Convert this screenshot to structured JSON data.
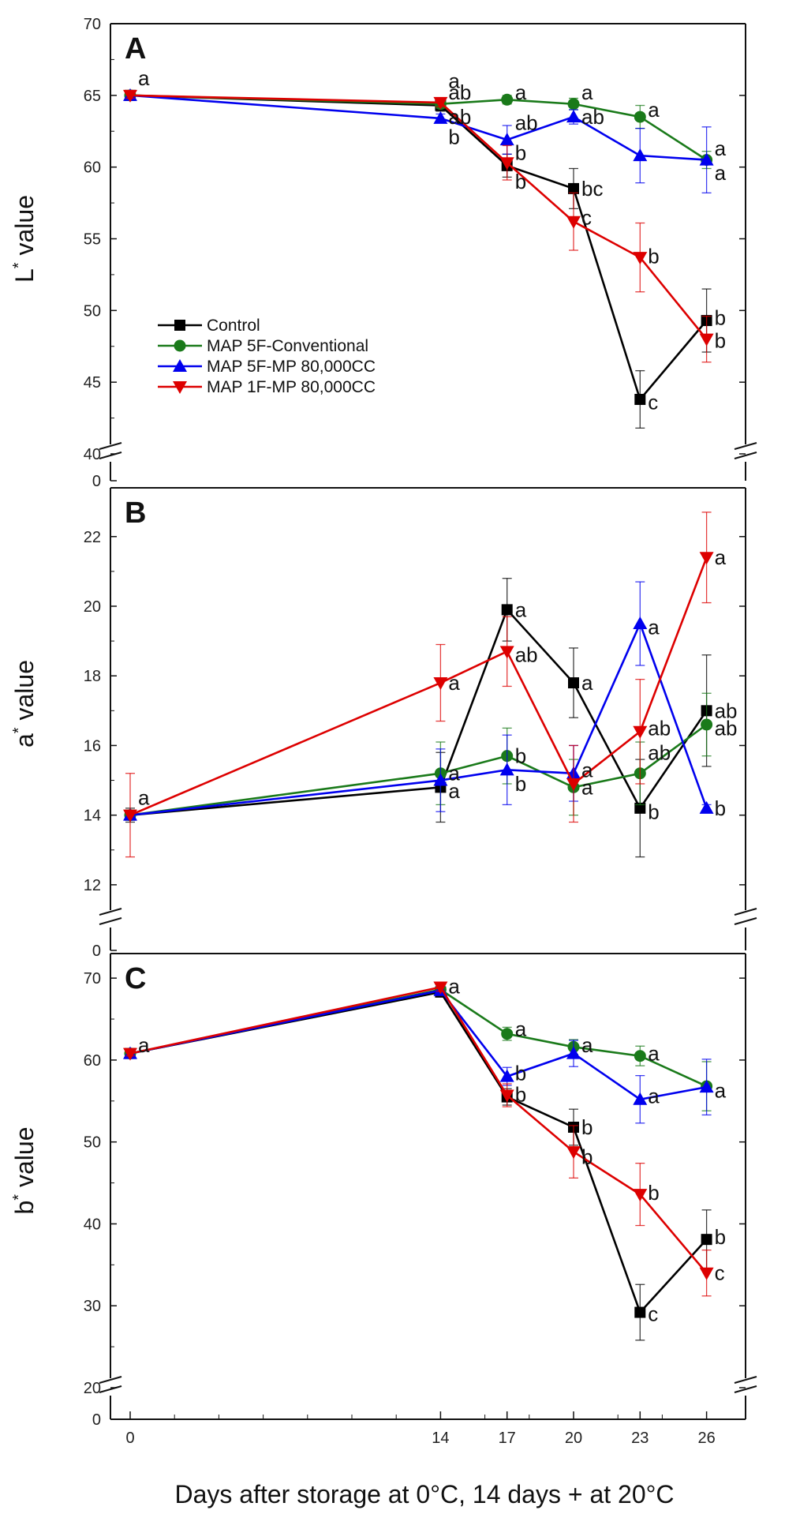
{
  "chart_data": {
    "type": "line",
    "xlabel": "Days after storage at 0°C, 14 days + at 20°C",
    "x": [
      0,
      14,
      17,
      20,
      23,
      26
    ],
    "x_tick_labels": [
      "0",
      "14",
      "17",
      "20",
      "23",
      "26"
    ],
    "legend": {
      "placement": "panel A, lower-left",
      "entries": [
        "Control",
        "MAP 5F-Conventional",
        "MAP 5F-MP 80,000CC",
        "MAP 1F-MP 80,000CC"
      ]
    },
    "series_styles": [
      {
        "name": "Control",
        "color": "#000000",
        "marker": "square"
      },
      {
        "name": "MAP 5F-Conventional",
        "color": "#1a7a1a",
        "marker": "circle"
      },
      {
        "name": "MAP 5F-MP 80,000CC",
        "color": "#0000ee",
        "marker": "triangle-up"
      },
      {
        "name": "MAP 1F-MP 80,000CC",
        "color": "#dd0000",
        "marker": "triangle-down"
      }
    ],
    "panels": [
      {
        "id": "A",
        "ylabel_main": "L",
        "ylabel_sup": "*",
        "ylabel_rest": " value",
        "ylim": [
          40,
          70
        ],
        "y_ticks": [
          40,
          45,
          50,
          55,
          60,
          65,
          70
        ],
        "y_tick_labels": [
          "40",
          "45",
          "50",
          "55",
          "60",
          "65",
          "70"
        ],
        "axis_break_label": "0",
        "series": [
          {
            "name": "Control",
            "values": [
              65.0,
              64.3,
              60.1,
              58.5,
              43.8,
              49.3
            ],
            "errors": [
              0.3,
              0.4,
              0.8,
              1.4,
              2.0,
              2.2
            ]
          },
          {
            "name": "MAP 5F-Conventional",
            "values": [
              65.0,
              64.4,
              64.7,
              64.4,
              63.5,
              60.5
            ],
            "errors": [
              0.2,
              0.3,
              0.3,
              0.4,
              0.8,
              0.6
            ]
          },
          {
            "name": "MAP 5F-MP 80,000CC",
            "values": [
              65.0,
              63.4,
              61.9,
              63.5,
              60.8,
              60.5
            ],
            "errors": [
              0.2,
              0.3,
              1.0,
              0.5,
              1.9,
              2.3
            ]
          },
          {
            "name": "MAP 1F-MP 80,000CC",
            "values": [
              65.0,
              64.5,
              60.3,
              56.2,
              53.7,
              48.0
            ],
            "errors": [
              0.2,
              0.3,
              1.2,
              2.0,
              2.4,
              1.6
            ]
          }
        ],
        "letters": [
          {
            "t": "a",
            "x": 0,
            "y": 66.2
          },
          {
            "t": "a",
            "x": 14,
            "y": 66.0
          },
          {
            "t": "ab",
            "x": 14,
            "y": 65.2
          },
          {
            "t": "ab",
            "x": 14,
            "y": 63.5
          },
          {
            "t": "b",
            "x": 14,
            "y": 62.1
          },
          {
            "t": "a",
            "x": 17,
            "y": 65.2
          },
          {
            "t": "ab",
            "x": 17,
            "y": 63.1
          },
          {
            "t": "b",
            "x": 17,
            "y": 61.0
          },
          {
            "t": "b",
            "x": 17,
            "y": 59.0
          },
          {
            "t": "a",
            "x": 20,
            "y": 65.2
          },
          {
            "t": "ab",
            "x": 20,
            "y": 63.5
          },
          {
            "t": "bc",
            "x": 20,
            "y": 58.5
          },
          {
            "t": "c",
            "x": 20,
            "y": 56.5
          },
          {
            "t": "a",
            "x": 23,
            "y": 64.0
          },
          {
            "t": "b",
            "x": 23,
            "y": 53.8
          },
          {
            "t": "c",
            "x": 23,
            "y": 43.6
          },
          {
            "t": "a",
            "x": 26,
            "y": 61.3
          },
          {
            "t": "a",
            "x": 26,
            "y": 59.6
          },
          {
            "t": "b",
            "x": 26,
            "y": 49.5
          },
          {
            "t": "b",
            "x": 26,
            "y": 47.9
          }
        ]
      },
      {
        "id": "B",
        "ylabel_main": "a",
        "ylabel_sup": "*",
        "ylabel_rest": " value",
        "ylim": [
          11,
          23.4
        ],
        "y_ticks": [
          12,
          14,
          16,
          18,
          20,
          22
        ],
        "y_tick_labels": [
          "12",
          "14",
          "16",
          "18",
          "20",
          "22"
        ],
        "axis_break_label": "0",
        "series": [
          {
            "name": "Control",
            "values": [
              14.0,
              14.8,
              19.9,
              17.8,
              14.2,
              17.0
            ],
            "errors": [
              0.2,
              1.0,
              0.9,
              1.0,
              1.4,
              1.6
            ]
          },
          {
            "name": "MAP 5F-Conventional",
            "values": [
              14.0,
              15.2,
              15.7,
              14.8,
              15.2,
              16.6
            ],
            "errors": [
              0.1,
              0.9,
              0.8,
              0.8,
              0.9,
              0.9
            ]
          },
          {
            "name": "MAP 5F-MP 80,000CC",
            "values": [
              14.0,
              15.0,
              15.3,
              15.2,
              19.5,
              14.2
            ],
            "errors": [
              0.1,
              0.9,
              1.0,
              0.8,
              1.2,
              0.1
            ]
          },
          {
            "name": "MAP 1F-MP 80,000CC",
            "values": [
              14.0,
              17.8,
              18.7,
              14.9,
              16.4,
              21.4
            ],
            "errors": [
              1.2,
              1.1,
              1.0,
              1.1,
              1.5,
              1.3
            ]
          }
        ],
        "letters": [
          {
            "t": "a",
            "x": 0,
            "y": 14.5
          },
          {
            "t": "a",
            "x": 14,
            "y": 17.8
          },
          {
            "t": "a",
            "x": 14,
            "y": 15.2
          },
          {
            "t": "a",
            "x": 14,
            "y": 14.7
          },
          {
            "t": "a",
            "x": 17,
            "y": 19.9
          },
          {
            "t": "ab",
            "x": 17,
            "y": 18.6
          },
          {
            "t": "b",
            "x": 17,
            "y": 15.7
          },
          {
            "t": "b",
            "x": 17,
            "y": 14.9
          },
          {
            "t": "a",
            "x": 20,
            "y": 17.8
          },
          {
            "t": "a",
            "x": 20,
            "y": 15.3
          },
          {
            "t": "a",
            "x": 20,
            "y": 14.8
          },
          {
            "t": "a",
            "x": 23,
            "y": 19.4
          },
          {
            "t": "ab",
            "x": 23,
            "y": 16.5
          },
          {
            "t": "ab",
            "x": 23,
            "y": 15.8
          },
          {
            "t": "b",
            "x": 23,
            "y": 14.1
          },
          {
            "t": "a",
            "x": 26,
            "y": 21.4
          },
          {
            "t": "ab",
            "x": 26,
            "y": 17.0
          },
          {
            "t": "ab",
            "x": 26,
            "y": 16.5
          },
          {
            "t": "b",
            "x": 26,
            "y": 14.2
          }
        ]
      },
      {
        "id": "C",
        "ylabel_main": "b",
        "ylabel_sup": "*",
        "ylabel_rest": " value",
        "ylim": [
          20,
          73
        ],
        "y_ticks": [
          20,
          30,
          40,
          50,
          60,
          70
        ],
        "y_tick_labels": [
          "20",
          "30",
          "40",
          "50",
          "60",
          "70"
        ],
        "axis_break_label": "0",
        "series": [
          {
            "name": "Control",
            "values": [
              60.8,
              68.3,
              55.5,
              51.8,
              29.2,
              38.1
            ],
            "errors": [
              0.3,
              0.6,
              1.0,
              2.2,
              3.4,
              3.6
            ]
          },
          {
            "name": "MAP 5F-Conventional",
            "values": [
              60.8,
              68.6,
              63.2,
              61.6,
              60.5,
              56.8
            ],
            "errors": [
              0.3,
              0.5,
              0.8,
              0.9,
              1.2,
              3.0
            ]
          },
          {
            "name": "MAP 5F-MP 80,000CC",
            "values": [
              60.8,
              68.5,
              58.0,
              60.8,
              55.2,
              56.7
            ],
            "errors": [
              0.3,
              0.5,
              1.1,
              1.6,
              2.9,
              3.4
            ]
          },
          {
            "name": "MAP 1F-MP 80,000CC",
            "values": [
              60.8,
              68.9,
              55.7,
              48.8,
              43.6,
              34.0
            ],
            "errors": [
              0.3,
              0.5,
              1.4,
              3.2,
              3.8,
              2.8
            ]
          }
        ],
        "letters": [
          {
            "t": "a",
            "x": 0,
            "y": 61.8
          },
          {
            "t": "a",
            "x": 14,
            "y": 69.0
          },
          {
            "t": "a",
            "x": 17,
            "y": 63.8
          },
          {
            "t": "b",
            "x": 17,
            "y": 58.4
          },
          {
            "t": "b",
            "x": 17,
            "y": 55.8
          },
          {
            "t": "a",
            "x": 20,
            "y": 61.8
          },
          {
            "t": "b",
            "x": 20,
            "y": 51.8
          },
          {
            "t": "b",
            "x": 20,
            "y": 48.2
          },
          {
            "t": "a",
            "x": 23,
            "y": 60.8
          },
          {
            "t": "a",
            "x": 23,
            "y": 55.6
          },
          {
            "t": "b",
            "x": 23,
            "y": 43.8
          },
          {
            "t": "c",
            "x": 23,
            "y": 29.0
          },
          {
            "t": "a",
            "x": 26,
            "y": 56.3
          },
          {
            "t": "b",
            "x": 26,
            "y": 38.4
          },
          {
            "t": "c",
            "x": 26,
            "y": 34.0
          }
        ]
      }
    ]
  }
}
